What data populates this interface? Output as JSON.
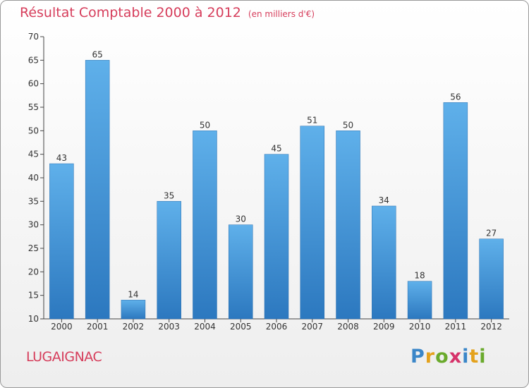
{
  "chart_data": {
    "type": "bar",
    "title": "Résultat Comptable 2000 à 2012",
    "subtitle": "(en milliers d'€)",
    "categories": [
      "2000",
      "2001",
      "2002",
      "2003",
      "2004",
      "2005",
      "2006",
      "2007",
      "2008",
      "2009",
      "2010",
      "2011",
      "2012"
    ],
    "values": [
      43,
      65,
      14,
      35,
      50,
      30,
      45,
      51,
      50,
      34,
      18,
      56,
      27
    ],
    "ylim": [
      10,
      70
    ],
    "yticks": [
      10,
      15,
      20,
      25,
      30,
      35,
      40,
      45,
      50,
      55,
      60,
      65,
      70
    ],
    "grid": false,
    "bar_color": "#3f8fd3"
  },
  "footer": {
    "location": "LUGAIGNAC",
    "brand_letters": [
      {
        "ch": "P",
        "color": "#3a86c8"
      },
      {
        "ch": "r",
        "color": "#e4a21d"
      },
      {
        "ch": "o",
        "color": "#6aaa2c"
      },
      {
        "ch": "x",
        "color": "#d6336a"
      },
      {
        "ch": "i",
        "color": "#3a86c8"
      },
      {
        "ch": "t",
        "color": "#e4a21d"
      },
      {
        "ch": "i",
        "color": "#6aaa2c"
      }
    ]
  },
  "colors": {
    "title": "#d63d5b",
    "axis": "#444444"
  }
}
